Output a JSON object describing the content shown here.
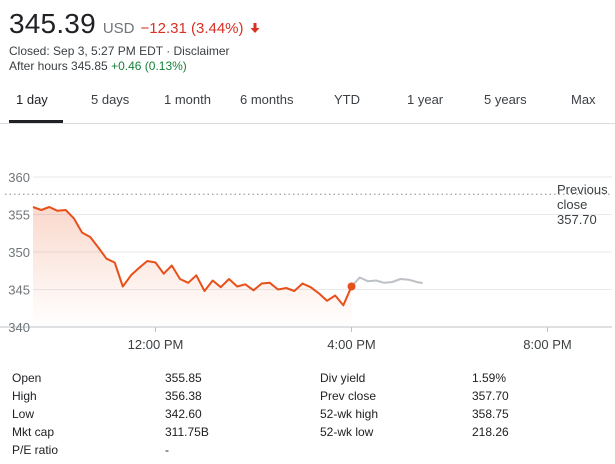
{
  "quote": {
    "price": "345.39",
    "currency": "USD",
    "change": "−12.31 (3.44%)",
    "change_direction": "down",
    "closed_text": "Closed: Sep 3, 5:27 PM EDT · Disclaimer",
    "after_hours_label": "After hours 345.85 ",
    "after_hours_change": "+0.46 (0.13%)"
  },
  "colors": {
    "down": "#d93025",
    "up": "#188038",
    "line": "#e8501a",
    "after_hours_line": "#bdc1c6",
    "grid": "#e8eaed"
  },
  "tabs": [
    {
      "label": "1 day",
      "active": true
    },
    {
      "label": "5 days",
      "active": false
    },
    {
      "label": "1 month",
      "active": false
    },
    {
      "label": "6 months",
      "active": false
    },
    {
      "label": "YTD",
      "active": false
    },
    {
      "label": "1 year",
      "active": false
    },
    {
      "label": "5 years",
      "active": false
    },
    {
      "label": "Max",
      "active": false
    }
  ],
  "chart_data": {
    "type": "line",
    "y_ticks": [
      "360",
      "355",
      "350",
      "345",
      "340"
    ],
    "x_ticks": [
      "12:00 PM",
      "4:00 PM",
      "8:00 PM"
    ],
    "ylim": [
      340,
      362
    ],
    "xlim": [
      "9:30 AM",
      "9:00 PM"
    ],
    "previous_close": {
      "label": [
        "Previous",
        "close",
        "357.70"
      ],
      "value": 357.7
    },
    "series": [
      {
        "session": "regular",
        "x": [
          "9:30 AM",
          "9:40 AM",
          "9:50 AM",
          "10:00 AM",
          "10:10 AM",
          "10:20 AM",
          "10:30 AM",
          "10:40 AM",
          "10:50 AM",
          "11:00 AM",
          "11:10 AM",
          "11:20 AM",
          "11:30 AM",
          "11:40 AM",
          "11:50 AM",
          "12:00 PM",
          "12:10 PM",
          "12:20 PM",
          "12:30 PM",
          "12:40 PM",
          "12:50 PM",
          "1:00 PM",
          "1:10 PM",
          "1:20 PM",
          "1:30 PM",
          "1:40 PM",
          "1:50 PM",
          "2:00 PM",
          "2:10 PM",
          "2:20 PM",
          "2:30 PM",
          "2:40 PM",
          "2:50 PM",
          "3:00 PM",
          "3:10 PM",
          "3:20 PM",
          "3:30 PM",
          "3:40 PM",
          "3:50 PM",
          "4:00 PM"
        ],
        "y": [
          356.0,
          355.6,
          356.0,
          355.5,
          355.6,
          354.5,
          352.6,
          352.0,
          350.6,
          349.1,
          348.6,
          345.4,
          346.9,
          347.9,
          348.8,
          348.6,
          347.1,
          348.2,
          346.4,
          345.9,
          346.9,
          344.8,
          346.2,
          345.3,
          346.4,
          345.4,
          345.7,
          344.9,
          345.8,
          345.9,
          345.0,
          345.2,
          344.8,
          345.8,
          345.3,
          344.5,
          343.5,
          344.2,
          342.9,
          345.4
        ]
      },
      {
        "session": "after_hours",
        "x": [
          "4:00 PM",
          "4:10 PM",
          "4:20 PM",
          "4:30 PM",
          "4:40 PM",
          "4:50 PM",
          "5:00 PM",
          "5:10 PM",
          "5:20 PM",
          "5:27 PM"
        ],
        "y": [
          345.4,
          346.6,
          346.1,
          346.2,
          345.9,
          346.0,
          346.4,
          346.3,
          346.0,
          345.85
        ]
      }
    ]
  },
  "stats": {
    "left": [
      {
        "label": "Open",
        "value": "355.85"
      },
      {
        "label": "High",
        "value": "356.38"
      },
      {
        "label": "Low",
        "value": "342.60"
      },
      {
        "label": "Mkt cap",
        "value": "311.75B"
      },
      {
        "label": "P/E ratio",
        "value": "-"
      }
    ],
    "right": [
      {
        "label": "Div yield",
        "value": "1.59%"
      },
      {
        "label": "Prev close",
        "value": "357.70"
      },
      {
        "label": "52-wk high",
        "value": "358.75"
      },
      {
        "label": "52-wk low",
        "value": "218.26"
      }
    ]
  }
}
